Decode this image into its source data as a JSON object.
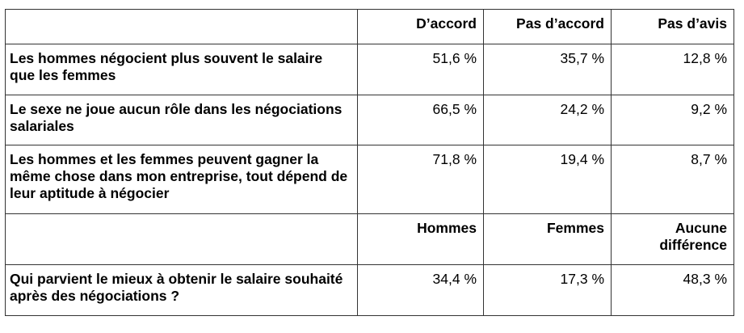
{
  "headers": {
    "col1": "D’accord",
    "col2": "Pas d’accord",
    "col3": "Pas d’avis"
  },
  "rows": [
    {
      "label": "Les hommes négocient plus souvent le salaire que les femmes",
      "values": [
        "51,6 %",
        "35,7 %",
        "12,8 %"
      ]
    },
    {
      "label": "Le sexe ne joue aucun rôle dans les négociations salariales",
      "values": [
        "66,5 %",
        "24,2 %",
        "9,2 %"
      ]
    },
    {
      "label": "Les hommes et les femmes peuvent gagner la même chose dans mon entreprise, tout dépend de leur aptitude à négocier",
      "values": [
        "71,8 %",
        "19,4 %",
        "8,7 %"
      ]
    }
  ],
  "headers2": {
    "col1": "Hommes",
    "col2": "Femmes",
    "col3": "Aucune différence"
  },
  "rows2": [
    {
      "label": "Qui parvient le mieux à obtenir le salaire souhaité après des négociations ?",
      "values": [
        "34,4 %",
        "17,3 %",
        "48,3 %"
      ]
    }
  ]
}
